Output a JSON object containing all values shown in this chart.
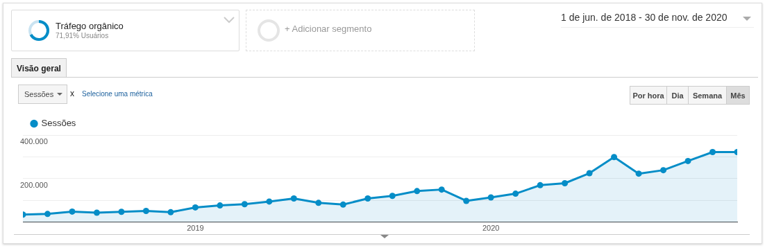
{
  "chart_data": {
    "type": "area",
    "subtitle": "1 de jun. de 2018 - 30 de nov. de 2020",
    "annotations": [
      "Tráfego orgânico",
      "71,91% Usuários",
      "+ Adicionar segmento",
      "Visão geral",
      "Sessões",
      "x",
      "Selecione uma métrica",
      "Por hora",
      "Dia",
      "Semana",
      "Mês"
    ],
    "x": [
      "2018-06",
      "2018-07",
      "2018-08",
      "2018-09",
      "2018-10",
      "2018-11",
      "2018-12",
      "2019-01",
      "2019-02",
      "2019-03",
      "2019-04",
      "2019-05",
      "2019-06",
      "2019-07",
      "2019-08",
      "2019-09",
      "2019-10",
      "2019-11",
      "2019-12",
      "2020-01",
      "2020-02",
      "2020-03",
      "2020-04",
      "2020-05",
      "2020-06",
      "2020-07",
      "2020-08",
      "2020-09",
      "2020-10",
      "2020-11"
    ],
    "series": [
      {
        "name": "Sessões",
        "color": "#058dc7",
        "values": [
          35000,
          38000,
          49000,
          44000,
          48000,
          52000,
          46000,
          68000,
          77000,
          83000,
          95000,
          109000,
          89000,
          81000,
          109000,
          121000,
          143000,
          150000,
          98000,
          114000,
          131000,
          170000,
          179000,
          225000,
          299000,
          223000,
          239000,
          281000,
          322000,
          322000
        ]
      }
    ],
    "xlim": [
      "2018-06",
      "2020-11"
    ],
    "xticks": [
      {
        "value": "2019-01",
        "label": "2019"
      },
      {
        "value": "2020-01",
        "label": "2020"
      }
    ],
    "ylim": [
      0,
      400000
    ],
    "yticks": [
      {
        "value": 100000,
        "label": null
      },
      {
        "value": 200000,
        "label": "200.000"
      },
      {
        "value": 300000,
        "label": null
      },
      {
        "value": 400000,
        "label": "400.000"
      }
    ],
    "grid": "y",
    "legend": "top left",
    "marker": "circle",
    "line_style": "solid"
  }
}
